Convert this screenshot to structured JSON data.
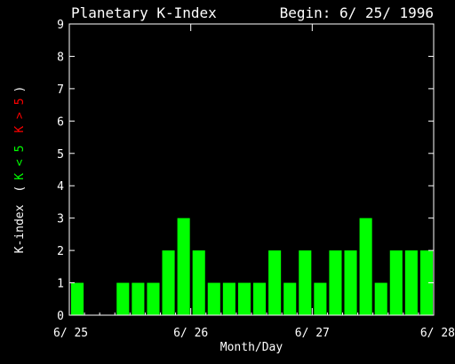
{
  "chart_data": {
    "type": "bar",
    "title": "Planetary K-Index",
    "begin_label": "Begin: 6/ 25/ 1996",
    "xlabel": "Month/Day",
    "ylabel_parts": {
      "prefix": "K-index",
      "open": "(",
      "low": "K < 5",
      "high": "K > 5",
      "close": ")"
    },
    "x_tick_labels": [
      "6/ 25",
      "6/ 26",
      "6/ 27",
      "6/ 28"
    ],
    "y_tick_labels": [
      "0",
      "1",
      "2",
      "3",
      "4",
      "5",
      "6",
      "7",
      "8",
      "9"
    ],
    "ylim": [
      0,
      9
    ],
    "threshold": 5,
    "values": [
      1,
      0,
      0,
      1,
      1,
      1,
      2,
      3,
      2,
      1,
      1,
      1,
      1,
      2,
      1,
      2,
      1,
      2,
      2,
      3,
      1,
      2,
      2,
      2
    ],
    "colors": {
      "background": "#000000",
      "axes": "#ffffff",
      "below_threshold": "#00ff00",
      "above_threshold": "#ff0000"
    }
  }
}
